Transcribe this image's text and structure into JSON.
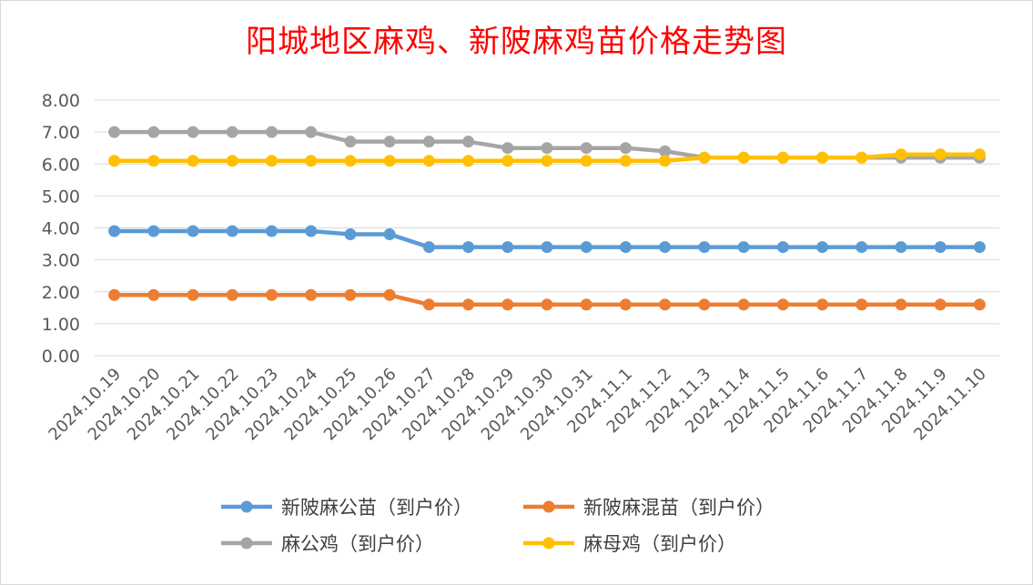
{
  "chart_data": {
    "type": "line",
    "title": "阳城地区麻鸡、新陂麻鸡苗价格走势图",
    "categories": [
      "2024.10.19",
      "2024.10.20",
      "2024.10.21",
      "2024.10.22",
      "2024.10.23",
      "2024.10.24",
      "2024.10.25",
      "2024.10.26",
      "2024.10.27",
      "2024.10.28",
      "2024.10.29",
      "2024.10.30",
      "2024.10.31",
      "2024.11.1",
      "2024.11.2",
      "2024.11.3",
      "2024.11.4",
      "2024.11.5",
      "2024.11.6",
      "2024.11.7",
      "2024.11.8",
      "2024.11.9",
      "2024.11.10"
    ],
    "ylim": [
      0,
      8
    ],
    "yticks": [
      "0.00",
      "1.00",
      "2.00",
      "3.00",
      "4.00",
      "5.00",
      "6.00",
      "7.00",
      "8.00"
    ],
    "grid": true,
    "legend_position": "bottom",
    "series": [
      {
        "name": "新陂麻公苗（到户价）",
        "color": "#5b9bd5",
        "values": [
          3.9,
          3.9,
          3.9,
          3.9,
          3.9,
          3.9,
          3.8,
          3.8,
          3.4,
          3.4,
          3.4,
          3.4,
          3.4,
          3.4,
          3.4,
          3.4,
          3.4,
          3.4,
          3.4,
          3.4,
          3.4,
          3.4,
          3.4
        ]
      },
      {
        "name": "新陂麻混苗（到户价）",
        "color": "#ed7d31",
        "values": [
          1.9,
          1.9,
          1.9,
          1.9,
          1.9,
          1.9,
          1.9,
          1.9,
          1.6,
          1.6,
          1.6,
          1.6,
          1.6,
          1.6,
          1.6,
          1.6,
          1.6,
          1.6,
          1.6,
          1.6,
          1.6,
          1.6,
          1.6
        ]
      },
      {
        "name": "麻公鸡（到户价）",
        "color": "#a5a5a5",
        "values": [
          7.0,
          7.0,
          7.0,
          7.0,
          7.0,
          7.0,
          6.7,
          6.7,
          6.7,
          6.7,
          6.5,
          6.5,
          6.5,
          6.5,
          6.4,
          6.2,
          6.2,
          6.2,
          6.2,
          6.2,
          6.2,
          6.2,
          6.2
        ]
      },
      {
        "name": "麻母鸡（到户价）",
        "color": "#ffc000",
        "values": [
          6.1,
          6.1,
          6.1,
          6.1,
          6.1,
          6.1,
          6.1,
          6.1,
          6.1,
          6.1,
          6.1,
          6.1,
          6.1,
          6.1,
          6.1,
          6.2,
          6.2,
          6.2,
          6.2,
          6.2,
          6.3,
          6.3,
          6.3
        ]
      }
    ]
  }
}
